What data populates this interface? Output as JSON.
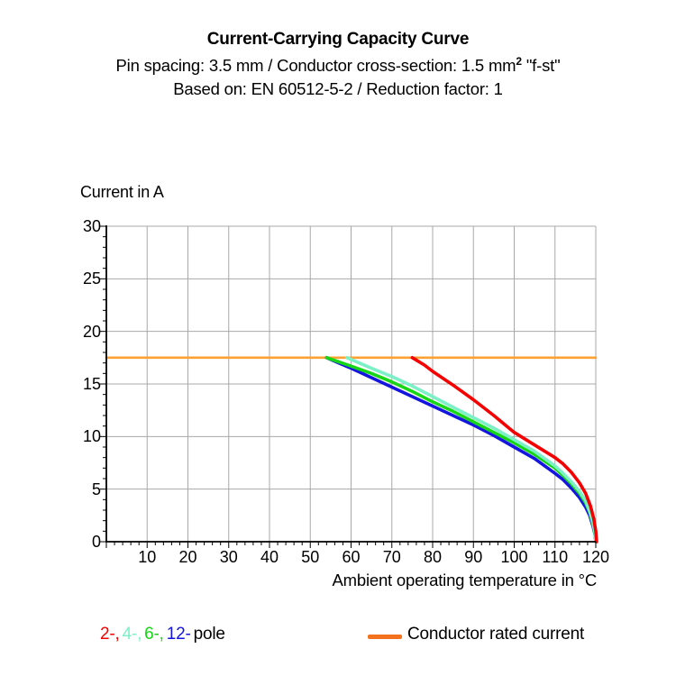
{
  "header": {
    "title": "Current-Carrying Capacity Curve",
    "subtitle1_pre": "Pin spacing: 3.5 mm / Conductor cross-section: 1.5 mm",
    "subtitle1_sup": "2",
    "subtitle1_post": " \"f-st\"",
    "subtitle2": "Based on: EN 60512-5-2 / Reduction factor: 1"
  },
  "chart_data": {
    "type": "line",
    "title": "Current-Carrying Capacity Curve",
    "xlabel": "Ambient operating temperature in °C",
    "ylabel": "Current in A",
    "xlim": [
      0,
      120
    ],
    "ylim": [
      0,
      30
    ],
    "x_ticks": [
      10,
      20,
      30,
      40,
      50,
      60,
      70,
      80,
      90,
      100,
      110,
      120
    ],
    "y_ticks": [
      0,
      5,
      10,
      15,
      20,
      25,
      30
    ],
    "x_minor_step": 2,
    "y_minor_step": 1,
    "grid": true,
    "grid_color": "#a8a8a8",
    "axis_color": "#000000",
    "rated_current_A": 17.5,
    "series": [
      {
        "name": "2-pole",
        "color": "#f40000",
        "points": [
          [
            75,
            17.5
          ],
          [
            78,
            16.8
          ],
          [
            80,
            16.2
          ],
          [
            85,
            14.9
          ],
          [
            90,
            13.5
          ],
          [
            95,
            12.0
          ],
          [
            100,
            10.4
          ],
          [
            105,
            9.2
          ],
          [
            110,
            8.0
          ],
          [
            112,
            7.4
          ],
          [
            114,
            6.6
          ],
          [
            116,
            5.6
          ],
          [
            117.5,
            4.6
          ],
          [
            118.7,
            3.4
          ],
          [
            119.5,
            2.2
          ],
          [
            120,
            1.0
          ],
          [
            120.2,
            0
          ]
        ]
      },
      {
        "name": "4-pole",
        "color": "#7cf0c6",
        "points": [
          [
            59,
            17.5
          ],
          [
            62,
            17.0
          ],
          [
            65,
            16.5
          ],
          [
            70,
            15.7
          ],
          [
            75,
            14.8
          ],
          [
            80,
            13.8
          ],
          [
            85,
            12.8
          ],
          [
            90,
            11.8
          ],
          [
            95,
            10.8
          ],
          [
            100,
            9.7
          ],
          [
            105,
            8.6
          ],
          [
            110,
            7.2
          ],
          [
            112,
            6.5
          ],
          [
            114,
            5.7
          ],
          [
            116,
            4.8
          ],
          [
            117.5,
            3.9
          ],
          [
            118.5,
            2.9
          ],
          [
            119.3,
            1.8
          ],
          [
            119.8,
            0.9
          ],
          [
            120,
            0
          ]
        ]
      },
      {
        "name": "6-pole",
        "color": "#16d616",
        "points": [
          [
            54,
            17.5
          ],
          [
            57,
            17.1
          ],
          [
            60,
            16.7
          ],
          [
            65,
            16.0
          ],
          [
            70,
            15.2
          ],
          [
            75,
            14.3
          ],
          [
            80,
            13.3
          ],
          [
            85,
            12.4
          ],
          [
            90,
            11.4
          ],
          [
            95,
            10.4
          ],
          [
            100,
            9.4
          ],
          [
            105,
            8.3
          ],
          [
            110,
            7.0
          ],
          [
            112,
            6.3
          ],
          [
            114,
            5.5
          ],
          [
            116,
            4.6
          ],
          [
            117.5,
            3.7
          ],
          [
            118.5,
            2.8
          ],
          [
            119.3,
            1.7
          ],
          [
            119.8,
            0.8
          ],
          [
            120,
            0
          ]
        ]
      },
      {
        "name": "12-pole",
        "color": "#1515e0",
        "points": [
          [
            54,
            17.5
          ],
          [
            57,
            17.0
          ],
          [
            60,
            16.5
          ],
          [
            65,
            15.6
          ],
          [
            70,
            14.7
          ],
          [
            75,
            13.8
          ],
          [
            80,
            12.9
          ],
          [
            85,
            12.0
          ],
          [
            90,
            11.1
          ],
          [
            95,
            10.1
          ],
          [
            100,
            9.0
          ],
          [
            105,
            7.9
          ],
          [
            110,
            6.5
          ],
          [
            112,
            5.9
          ],
          [
            114,
            5.1
          ],
          [
            116,
            4.2
          ],
          [
            117.5,
            3.3
          ],
          [
            118.5,
            2.5
          ],
          [
            119.3,
            1.5
          ],
          [
            119.8,
            0.7
          ],
          [
            120,
            0
          ]
        ]
      },
      {
        "name": "Conductor rated current",
        "color": "#ffa132",
        "points": [
          [
            0,
            17.5
          ],
          [
            120,
            17.5
          ]
        ]
      }
    ]
  },
  "legend": {
    "poles": [
      {
        "label": "2-,",
        "color": "#f40000"
      },
      {
        "label": "4-,",
        "color": "#7cf0c6"
      },
      {
        "label": "6-,",
        "color": "#16d616"
      },
      {
        "label": "12-",
        "color": "#1515e0"
      }
    ],
    "pole_suffix": "pole",
    "rated_label": "Conductor rated current",
    "swatch_color": "#f4721d"
  }
}
